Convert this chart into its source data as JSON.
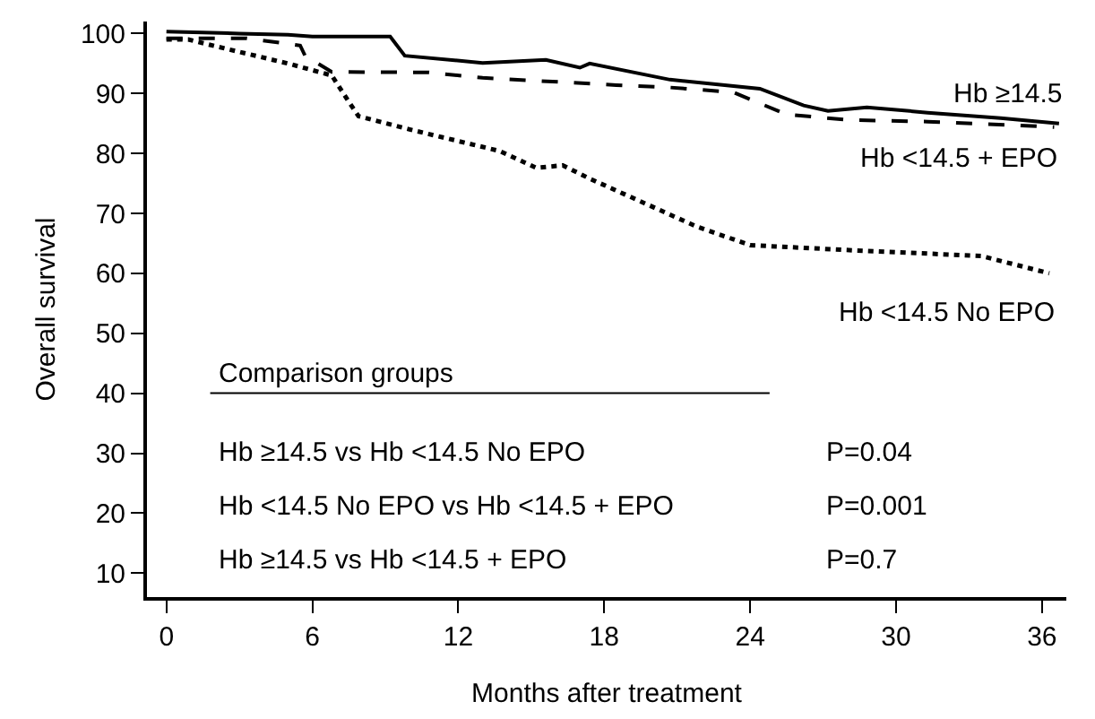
{
  "chart_data": {
    "type": "step",
    "xlabel": "Months after treatment",
    "ylabel": "Overall survival",
    "xlim": [
      -0.8,
      37
    ],
    "xticks": [
      0,
      6,
      12,
      18,
      24,
      30,
      36
    ],
    "ylim": [
      6,
      102
    ],
    "yticks": [
      10,
      20,
      30,
      40,
      50,
      60,
      70,
      80,
      90,
      100
    ],
    "grid": false,
    "legend": false,
    "marker": "none",
    "series": [
      {
        "name": "Hb ≥14.5",
        "color": "#000000",
        "line_style": "solid",
        "x": [
          0,
          3,
          5,
          6,
          9.2,
          9.8,
          13,
          15.6,
          17,
          17.4,
          20.7,
          24.4,
          26.2,
          27.2,
          28.8,
          31.3,
          34.3,
          36.7
        ],
        "values": [
          100.3,
          100,
          99.8,
          99.5,
          99.5,
          96.3,
          95.1,
          95.6,
          94.3,
          95,
          92.3,
          90.8,
          88,
          87.1,
          87.7,
          86.8,
          85.9,
          85
        ]
      },
      {
        "name": "Hb <14.5 + EPO",
        "color": "#000000",
        "line_style": "dashed",
        "x": [
          0,
          3.3,
          5.5,
          5.7,
          6.8,
          10.8,
          13,
          18.5,
          20.7,
          23.3,
          25.5,
          28,
          31.3,
          36.5
        ],
        "values": [
          99.2,
          99.2,
          98,
          96.3,
          93.6,
          93.5,
          92.6,
          91.4,
          91,
          90.2,
          86.5,
          85.6,
          85.3,
          84.4
        ]
      },
      {
        "name": "Hb <14.5 No EPO",
        "color": "#000000",
        "line_style": "dotted",
        "x": [
          0,
          0.9,
          2,
          5,
          6.8,
          7.5,
          7.9,
          10,
          13.7,
          15.2,
          16.3,
          17.4,
          19.6,
          21.8,
          24,
          28.4,
          33.5,
          36.3
        ],
        "values": [
          99,
          99,
          97.9,
          95,
          93,
          88.6,
          86.2,
          84,
          80.4,
          77.6,
          78,
          75.8,
          71.8,
          67.8,
          64.7,
          63.8,
          62.9,
          60
        ]
      }
    ],
    "annotations": [
      "Comparison groups",
      "Hb ≥14.5 vs Hb <14.5 No EPO",
      "P=0.04",
      "Hb <14.5 No EPO vs Hb <14.5 + EPO",
      "P=0.001",
      "Hb ≥14.5 vs Hb <14.5 + EPO",
      "P=0.7"
    ]
  }
}
